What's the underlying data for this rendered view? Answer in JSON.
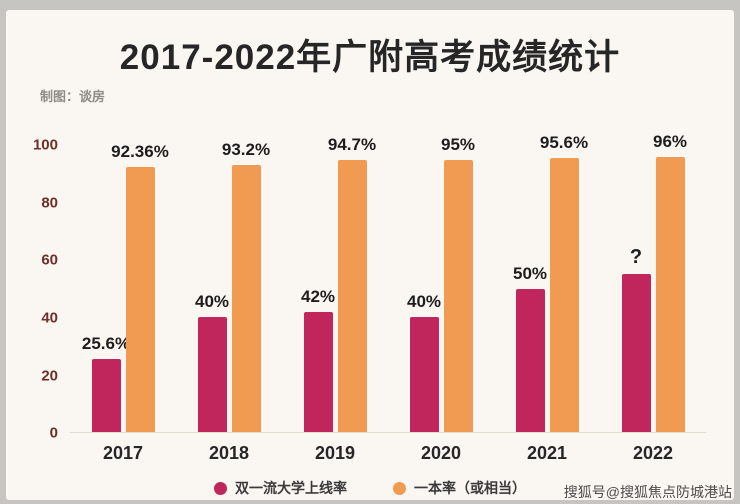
{
  "header": {
    "title": "2017-2022年广附高考成绩统计",
    "credit": "制图：谈房"
  },
  "watermark": "搜狐号@搜狐焦点防城港站",
  "colors": {
    "series1": "#c0265c",
    "series2": "#f09a52",
    "axis_tick": "#6e2f28",
    "card_bg": "#faf7f2"
  },
  "chart_data": {
    "type": "bar",
    "title": "2017-2022年广附高考成绩统计",
    "categories": [
      "2017",
      "2018",
      "2019",
      "2020",
      "2021",
      "2022"
    ],
    "series": [
      {
        "name": "双一流大学上线率",
        "color": "#c0265c",
        "values": [
          25.6,
          40,
          42,
          40,
          50,
          55
        ],
        "labels": [
          "25.6%",
          "40%",
          "42%",
          "40%",
          "50%",
          "?"
        ]
      },
      {
        "name": "一本率（或相当）",
        "color": "#f09a52",
        "values": [
          92.36,
          93.2,
          94.7,
          95,
          95.6,
          96
        ],
        "labels": [
          "92.36%",
          "93.2%",
          "94.7%",
          "95%",
          "95.6%",
          "96%"
        ]
      }
    ],
    "ylim": [
      0,
      100
    ],
    "yticks": [
      0,
      20,
      40,
      60,
      80,
      100
    ],
    "grid": false,
    "legend_position": "bottom"
  }
}
